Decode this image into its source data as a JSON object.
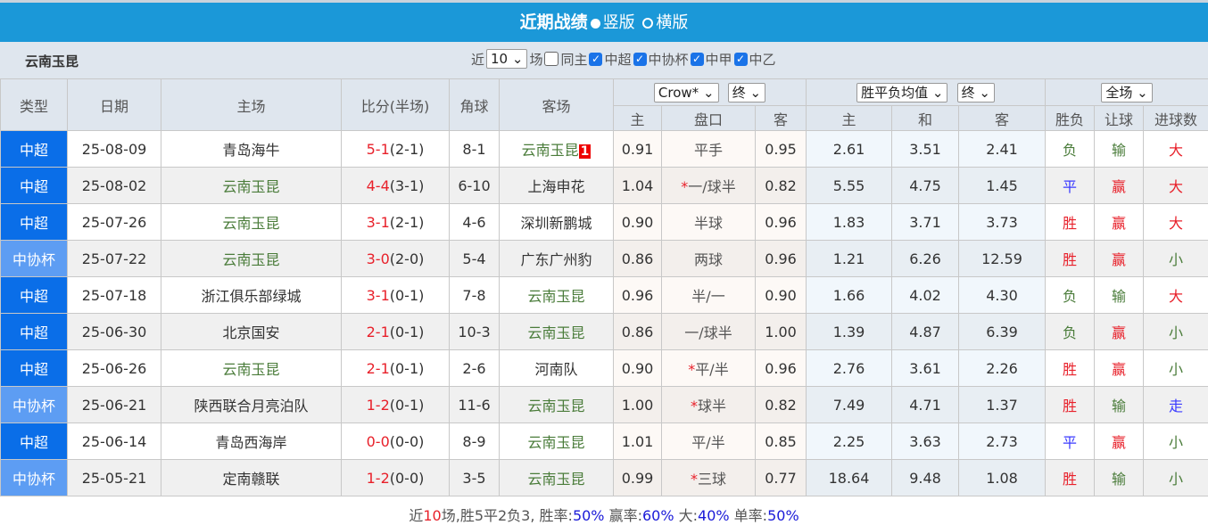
{
  "title": {
    "main": "近期战绩",
    "opt1": "竖版",
    "opt2": "横版"
  },
  "team": "云南玉昆",
  "filters": {
    "near": "近",
    "count": "10",
    "unit": "场",
    "same_home": "同主",
    "leagues": [
      "中超",
      "中协杯",
      "中甲",
      "中乙"
    ]
  },
  "headers": {
    "type": "类型",
    "date": "日期",
    "home": "主场",
    "score": "比分(半场)",
    "corner": "角球",
    "away": "客场",
    "company": "Crow*",
    "odds_state": "终",
    "euro_type": "胜平负均值",
    "euro_state": "终",
    "period": "全场",
    "sub": [
      "主",
      "盘口",
      "客",
      "主",
      "和",
      "客",
      "胜负",
      "让球",
      "进球数"
    ]
  },
  "rows": [
    {
      "type": "中超",
      "cup": false,
      "date": "25-08-09",
      "home": "青岛海牛",
      "hg": false,
      "ft": "5-1",
      "ht": "(2-1)",
      "corner": "8-1",
      "away": "云南玉昆",
      "ag": true,
      "badge": "1",
      "oh": "0.91",
      "line": "平手",
      "star": false,
      "oa": "0.95",
      "eh": "2.61",
      "ed": "3.51",
      "ea": "2.41",
      "res": "负",
      "ah": "输",
      "ou": "大"
    },
    {
      "type": "中超",
      "cup": false,
      "date": "25-08-02",
      "home": "云南玉昆",
      "hg": true,
      "ft": "4-4",
      "ht": "(3-1)",
      "corner": "6-10",
      "away": "上海申花",
      "ag": false,
      "oh": "1.04",
      "line": "一/球半",
      "star": true,
      "oa": "0.82",
      "eh": "5.55",
      "ed": "4.75",
      "ea": "1.45",
      "res": "平",
      "ah": "赢",
      "ou": "大"
    },
    {
      "type": "中超",
      "cup": false,
      "date": "25-07-26",
      "home": "云南玉昆",
      "hg": true,
      "ft": "3-1",
      "ht": "(2-1)",
      "corner": "4-6",
      "away": "深圳新鹏城",
      "ag": false,
      "oh": "0.90",
      "line": "半球",
      "star": false,
      "oa": "0.96",
      "eh": "1.83",
      "ed": "3.71",
      "ea": "3.73",
      "res": "胜",
      "ah": "赢",
      "ou": "大"
    },
    {
      "type": "中协杯",
      "cup": true,
      "date": "25-07-22",
      "home": "云南玉昆",
      "hg": true,
      "ft": "3-0",
      "ht": "(2-0)",
      "corner": "5-4",
      "away": "广东广州豹",
      "ag": false,
      "oh": "0.86",
      "line": "两球",
      "star": false,
      "oa": "0.96",
      "eh": "1.21",
      "ed": "6.26",
      "ea": "12.59",
      "res": "胜",
      "ah": "赢",
      "ou": "小"
    },
    {
      "type": "中超",
      "cup": false,
      "date": "25-07-18",
      "home": "浙江俱乐部绿城",
      "hg": false,
      "ft": "3-1",
      "ht": "(0-1)",
      "corner": "7-8",
      "away": "云南玉昆",
      "ag": true,
      "oh": "0.96",
      "line": "半/一",
      "star": false,
      "oa": "0.90",
      "eh": "1.66",
      "ed": "4.02",
      "ea": "4.30",
      "res": "负",
      "ah": "输",
      "ou": "大"
    },
    {
      "type": "中超",
      "cup": false,
      "date": "25-06-30",
      "home": "北京国安",
      "hg": false,
      "ft": "2-1",
      "ht": "(0-1)",
      "corner": "10-3",
      "away": "云南玉昆",
      "ag": true,
      "oh": "0.86",
      "line": "一/球半",
      "star": false,
      "oa": "1.00",
      "eh": "1.39",
      "ed": "4.87",
      "ea": "6.39",
      "res": "负",
      "ah": "赢",
      "ou": "小"
    },
    {
      "type": "中超",
      "cup": false,
      "date": "25-06-26",
      "home": "云南玉昆",
      "hg": true,
      "ft": "2-1",
      "ht": "(0-1)",
      "corner": "2-6",
      "away": "河南队",
      "ag": false,
      "oh": "0.90",
      "line": "平/半",
      "star": true,
      "oa": "0.96",
      "eh": "2.76",
      "ed": "3.61",
      "ea": "2.26",
      "res": "胜",
      "ah": "赢",
      "ou": "小"
    },
    {
      "type": "中协杯",
      "cup": true,
      "date": "25-06-21",
      "home": "陕西联合月亮泊队",
      "hg": false,
      "ft": "1-2",
      "ht": "(0-1)",
      "corner": "11-6",
      "away": "云南玉昆",
      "ag": true,
      "oh": "1.00",
      "line": "球半",
      "star": true,
      "oa": "0.82",
      "eh": "7.49",
      "ed": "4.71",
      "ea": "1.37",
      "res": "胜",
      "ah": "输",
      "ou": "走"
    },
    {
      "type": "中超",
      "cup": false,
      "date": "25-06-14",
      "home": "青岛西海岸",
      "hg": false,
      "ft": "0-0",
      "ht": "(0-0)",
      "corner": "8-9",
      "away": "云南玉昆",
      "ag": true,
      "oh": "1.01",
      "line": "平/半",
      "star": false,
      "oa": "0.85",
      "eh": "2.25",
      "ed": "3.63",
      "ea": "2.73",
      "res": "平",
      "ah": "赢",
      "ou": "小"
    },
    {
      "type": "中协杯",
      "cup": true,
      "date": "25-05-21",
      "home": "定南赣联",
      "hg": false,
      "ft": "1-2",
      "ht": "(0-0)",
      "corner": "3-5",
      "away": "云南玉昆",
      "ag": true,
      "oh": "0.99",
      "line": "三球",
      "star": true,
      "oa": "0.77",
      "eh": "18.64",
      "ed": "9.48",
      "ea": "1.08",
      "res": "胜",
      "ah": "输",
      "ou": "小"
    }
  ],
  "summary": {
    "p1": "近",
    "n": "10",
    "p2": "场,胜5平2负3, 胜率:",
    "win": "50%",
    "p3": " 赢率:",
    "ahwin": "60%",
    "p4": " 大:",
    "big": "40%",
    "p5": " 单率:",
    "odd": "50%"
  },
  "colors": {
    "header": "#1b98d8",
    "league": "#0a6ee8",
    "cup": "#5d9df3",
    "win": "#e8202a",
    "lose": "#4a7c3a",
    "draw": "#3a3aff"
  }
}
